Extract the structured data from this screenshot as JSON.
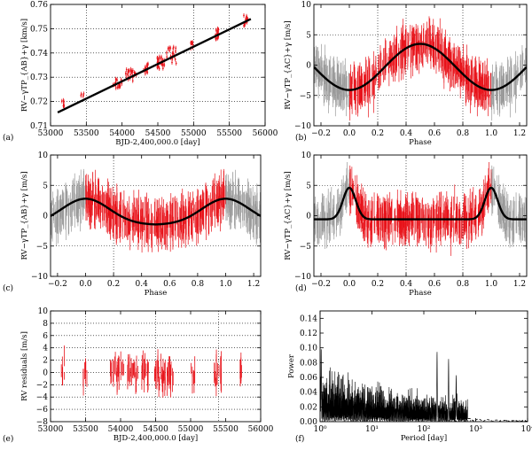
{
  "panels": [
    {
      "id": "a",
      "label": "(a)",
      "type": "scatter",
      "xlabel": "BJD-2,400,000.0 [day]",
      "ylabel": "RV−γTP_{AB}+γ [km/s]",
      "xlim": [
        53000,
        56000
      ],
      "ylim": [
        0.71,
        0.76
      ],
      "xticks": [
        53000,
        53500,
        54000,
        54500,
        55000,
        55500,
        56000
      ],
      "yticks": [
        0.71,
        0.72,
        0.73,
        0.74,
        0.75,
        0.76
      ],
      "xtick_labels": [
        "53000",
        "53500",
        "54000",
        "54500",
        "55000",
        "55500",
        "56000"
      ],
      "ytick_labels": [
        "0.71",
        "0.72",
        "0.73",
        "0.74",
        "0.75",
        "0.76"
      ],
      "vgrid": [
        53500,
        55000,
        55500
      ],
      "hgrid": [
        0.72,
        0.73,
        0.74,
        0.75
      ],
      "trend_line": {
        "x": [
          53100,
          55800
        ],
        "y": [
          0.7155,
          0.754
        ]
      },
      "point_clusters": [
        {
          "x": [
            53150,
            53200
          ],
          "y": [
            0.7175,
            0.7205
          ],
          "n": 8
        },
        {
          "x": [
            53420,
            53470
          ],
          "y": [
            0.7215,
            0.7235
          ],
          "n": 4
        },
        {
          "x": [
            53850,
            54000
          ],
          "y": [
            0.7255,
            0.7295
          ],
          "n": 18
        },
        {
          "x": [
            54050,
            54200
          ],
          "y": [
            0.7285,
            0.7335
          ],
          "n": 26
        },
        {
          "x": [
            54300,
            54380
          ],
          "y": [
            0.7315,
            0.7355
          ],
          "n": 16
        },
        {
          "x": [
            54480,
            54600
          ],
          "y": [
            0.7335,
            0.7385
          ],
          "n": 26
        },
        {
          "x": [
            54620,
            54760
          ],
          "y": [
            0.7355,
            0.7425
          ],
          "n": 22
        },
        {
          "x": [
            54950,
            55000
          ],
          "y": [
            0.7415,
            0.7445
          ],
          "n": 8
        },
        {
          "x": [
            55300,
            55360
          ],
          "y": [
            0.7455,
            0.7505
          ],
          "n": 16
        },
        {
          "x": [
            55700,
            55760
          ],
          "y": [
            0.7505,
            0.7555
          ],
          "n": 12
        }
      ]
    },
    {
      "id": "b",
      "label": "(b)",
      "type": "phase",
      "xlabel": "Phase",
      "ylabel": "RV−γTP_{AC}+γ [m/s]",
      "xlim": [
        -0.25,
        1.25
      ],
      "ylim": [
        -10,
        10
      ],
      "xticks": [
        -0.2,
        0.0,
        0.2,
        0.4,
        0.6,
        0.8,
        1.0,
        1.2
      ],
      "yticks": [
        -10,
        -5,
        0,
        5,
        10
      ],
      "xtick_labels": [
        "−0.2",
        "0.0",
        "0.2",
        "0.4",
        "0.6",
        "0.8",
        "1.0",
        "1.2"
      ],
      "ytick_labels": [
        "−10",
        "−5",
        "0",
        "5",
        "10"
      ],
      "vgrid": [
        0.2,
        0.4,
        0.8
      ],
      "hgrid": [
        -5,
        5
      ],
      "model": {
        "kind": "sine",
        "amplitude": 3.8,
        "offset": -0.3,
        "peak_phase": 0.5,
        "sharpness": 0
      }
    },
    {
      "id": "c",
      "label": "(c)",
      "type": "phase",
      "xlabel": "Phase",
      "ylabel": "RV−γTP_{AB}+γ [m/s]",
      "xlim": [
        -0.25,
        1.25
      ],
      "ylim": [
        -10,
        10
      ],
      "xticks": [
        -0.2,
        0.0,
        0.2,
        0.4,
        0.6,
        0.8,
        1.0,
        1.2
      ],
      "yticks": [
        -10,
        -5,
        0,
        5,
        10
      ],
      "xtick_labels": [
        "−0.2",
        "0.0",
        "0.2",
        "0.4",
        "0.6",
        "0.8",
        "1.0",
        "1.2"
      ],
      "ytick_labels": [
        "−10",
        "−5",
        "0",
        "5",
        "10"
      ],
      "vgrid": [
        0.2
      ],
      "hgrid": [
        -5,
        5
      ],
      "model": {
        "kind": "ecc",
        "baseline": -1.5,
        "peak": 2.8,
        "peak_phase": 0.0,
        "width": 0.17
      }
    },
    {
      "id": "d",
      "label": "(d)",
      "type": "phase",
      "xlabel": "Phase",
      "ylabel": "RV−γTP_{AC}+γ [m/s]",
      "xlim": [
        -0.25,
        1.25
      ],
      "ylim": [
        -10,
        10
      ],
      "xticks": [
        -0.2,
        0.0,
        0.2,
        0.4,
        0.6,
        0.8,
        1.0,
        1.2
      ],
      "yticks": [
        -10,
        -5,
        0,
        5,
        10
      ],
      "xtick_labels": [
        "−0.2",
        "0.0",
        "0.2",
        "0.4",
        "0.6",
        "0.8",
        "1.0",
        "1.2"
      ],
      "ytick_labels": [
        "−10",
        "−5",
        "0",
        "5",
        "10"
      ],
      "vgrid": [
        0.4,
        0.8
      ],
      "hgrid": [
        -5,
        5
      ],
      "model": {
        "kind": "ecc",
        "baseline": -0.6,
        "peak": 4.6,
        "peak_phase": 0.0,
        "width": 0.045
      }
    },
    {
      "id": "e",
      "label": "(e)",
      "type": "residuals",
      "xlabel": "BJD-2,400,000.0 [day]",
      "ylabel": "RV residuals [m/s]",
      "xlim": [
        53000,
        56000
      ],
      "ylim": [
        -8,
        10
      ],
      "xticks": [
        53000,
        53500,
        54000,
        54500,
        55000,
        55500,
        56000
      ],
      "yticks": [
        -8,
        -6,
        -4,
        -2,
        0,
        2,
        4,
        6,
        8,
        10
      ],
      "xtick_labels": [
        "53000",
        "53500",
        "54000",
        "54500",
        "55000",
        "55500",
        "56000"
      ],
      "ytick_labels": [
        "−8",
        "−6",
        "−4",
        "−2",
        "0",
        "2",
        "4",
        "6",
        "8",
        "10"
      ],
      "vgrid": [
        53500,
        54500,
        55400
      ],
      "hgrid": [
        -6,
        -4,
        -2,
        0,
        2,
        4,
        6,
        8
      ],
      "epoch_clusters": [
        {
          "x": [
            53150,
            53200
          ],
          "n": 5
        },
        {
          "x": [
            53460,
            53520
          ],
          "n": 7
        },
        {
          "x": [
            53850,
            54050
          ],
          "n": 22
        },
        {
          "x": [
            54100,
            54260
          ],
          "n": 20
        },
        {
          "x": [
            54300,
            54400
          ],
          "n": 14
        },
        {
          "x": [
            54480,
            54640
          ],
          "n": 24
        },
        {
          "x": [
            54660,
            54760
          ],
          "n": 14
        },
        {
          "x": [
            55000,
            55060
          ],
          "n": 6
        },
        {
          "x": [
            55320,
            55440
          ],
          "n": 16
        },
        {
          "x": [
            55700,
            55760
          ],
          "n": 6
        }
      ]
    },
    {
      "id": "f",
      "label": "(f)",
      "type": "periodogram",
      "xlabel": "Period [day]",
      "ylabel": "Power",
      "xscale": "log",
      "xlim": [
        1,
        10000
      ],
      "ylim": [
        0,
        0.15
      ],
      "xticks": [
        1,
        10,
        100,
        1000,
        10000
      ],
      "yticks": [
        0,
        0.02,
        0.04,
        0.06,
        0.08,
        0.1,
        0.12,
        0.14
      ],
      "xtick_labels": [
        "10⁰",
        "10¹",
        "10²",
        "10³",
        "10⁴"
      ],
      "ytick_labels": [
        "0.00",
        "0.02",
        "0.04",
        "0.06",
        "0.08",
        "0.10",
        "0.12",
        "0.14"
      ],
      "peaks": [
        {
          "period": 1.05,
          "power": 0.1
        },
        {
          "period": 180,
          "power": 0.095
        },
        {
          "period": 300,
          "power": 0.085
        },
        {
          "period": 420,
          "power": 0.063
        }
      ]
    }
  ],
  "colors": {
    "data": "#e8131a",
    "data_wrapped": "#9a9a9a",
    "model": "#000000",
    "grid": "#9a9a9a"
  }
}
